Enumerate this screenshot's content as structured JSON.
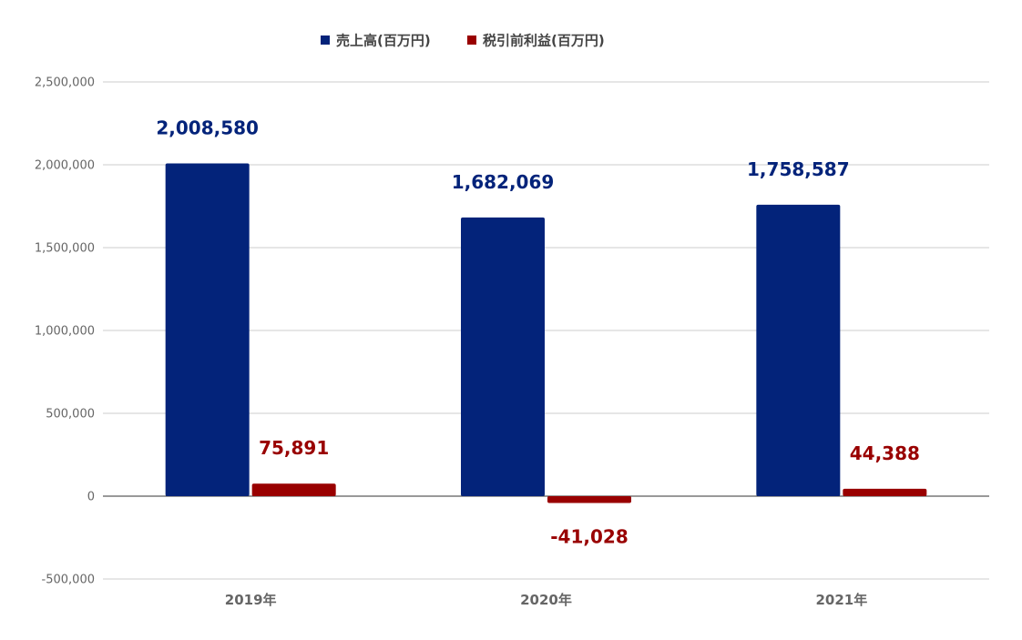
{
  "chart_data": {
    "type": "bar",
    "categories": [
      "2019年",
      "2020年",
      "2021年"
    ],
    "series": [
      {
        "name": "売上高(百万円)",
        "color": "#03237a",
        "values": [
          2008580,
          1682069,
          1758587
        ],
        "labels": [
          "2,008,580",
          "1,682,069",
          "1,758,587"
        ]
      },
      {
        "name": "税引前利益(百万円)",
        "color": "#990000",
        "values": [
          75891,
          -41028,
          44388
        ],
        "labels": [
          "75,891",
          "-41,028",
          "44,388"
        ]
      }
    ],
    "yticks": [
      2500000,
      2000000,
      1500000,
      1000000,
      500000,
      0,
      -500000
    ],
    "ytick_labels": [
      "2,500,000",
      "2,000,000",
      "1,500,000",
      "1,000,000",
      "500,000",
      "0",
      "-500,000"
    ],
    "ylim": [
      -500000,
      2500000
    ],
    "legend_position": "top",
    "grid": true,
    "title": "",
    "xlabel": "",
    "ylabel": ""
  }
}
